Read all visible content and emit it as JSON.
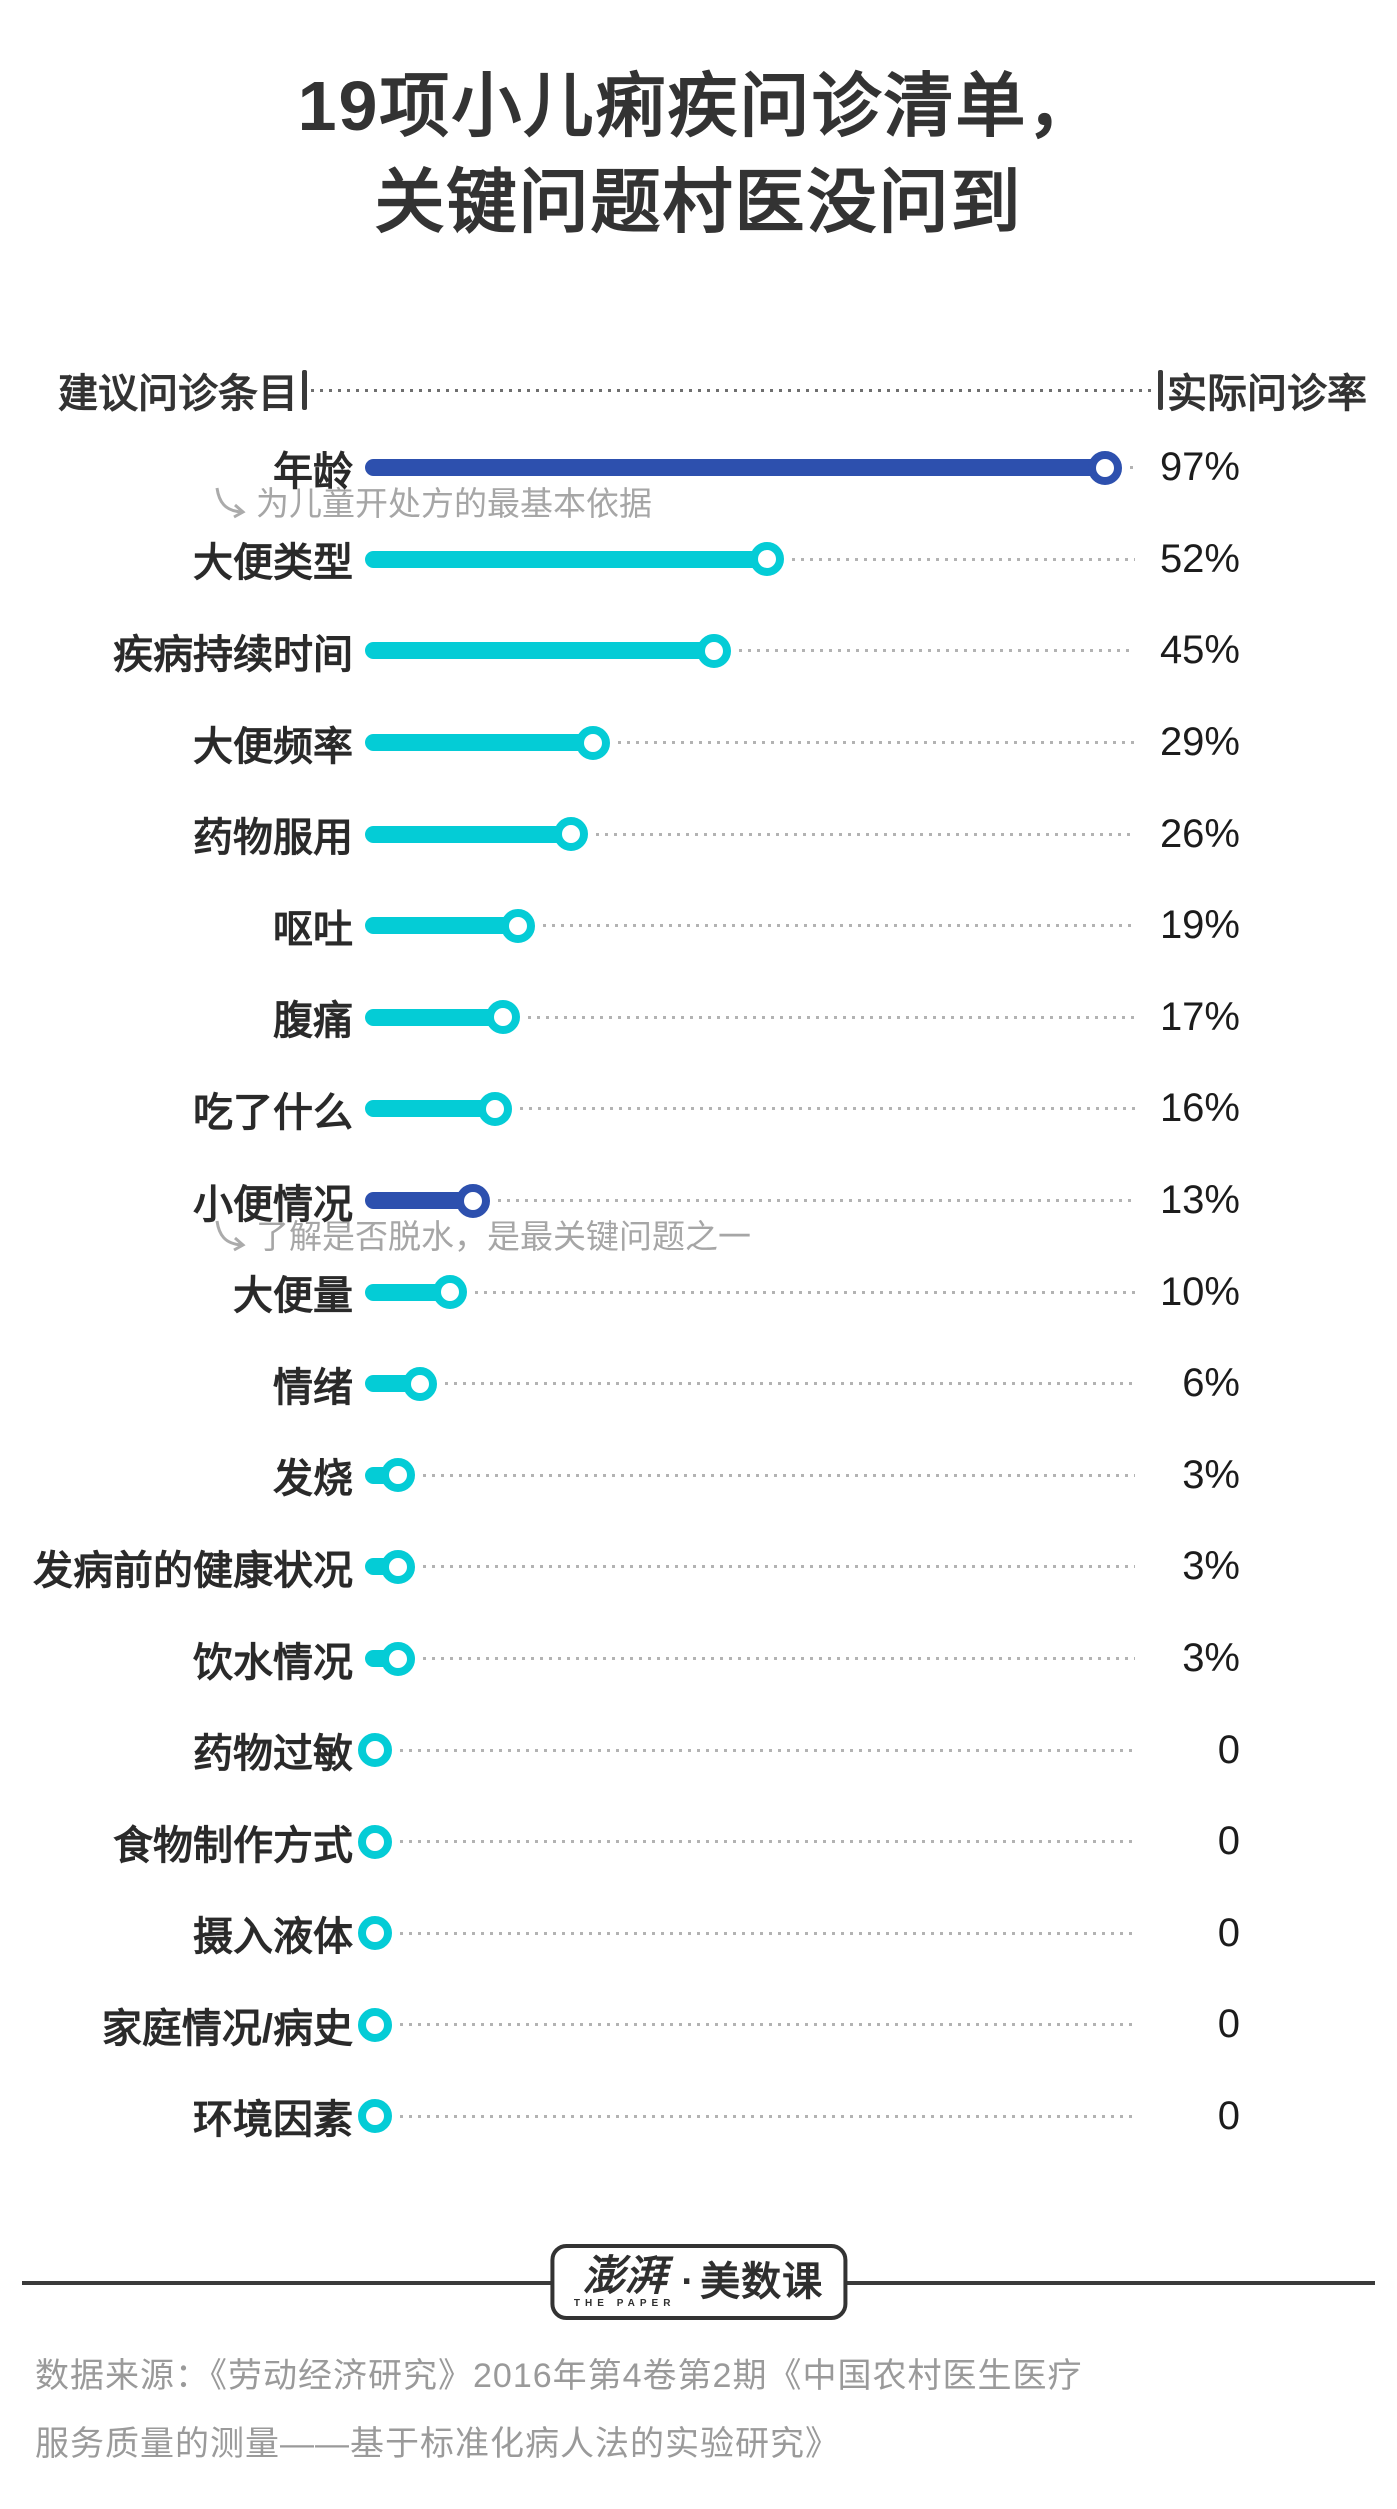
{
  "title": {
    "line1": "19项小儿痢疾问诊清单，",
    "line2": "关键问题村医没问到"
  },
  "header": {
    "left_label": "建议问诊条目",
    "right_label": "实际问诊率"
  },
  "chart_data": {
    "type": "bar",
    "orientation": "horizontal",
    "title": "19项小儿痢疾问诊清单，关键问题村医没问到",
    "xlabel": "实际问诊率",
    "ylabel": "建议问诊条目",
    "unit": "%",
    "xlim": [
      0,
      100
    ],
    "grid": false,
    "legend": false,
    "categories": [
      "年龄",
      "大便类型",
      "疾病持续时间",
      "大便频率",
      "药物服用",
      "呕吐",
      "腹痛",
      "吃了什么",
      "小便情况",
      "大便量",
      "情绪",
      "发烧",
      "发病前的健康状况",
      "饮水情况",
      "药物过敏",
      "食物制作方式",
      "摄入液体",
      "家庭情况/病史",
      "环境因素"
    ],
    "values": [
      97,
      52,
      45,
      29,
      26,
      19,
      17,
      16,
      13,
      10,
      6,
      3,
      3,
      3,
      0,
      0,
      0,
      0,
      0
    ],
    "value_labels": [
      "97%",
      "52%",
      "45%",
      "29%",
      "26%",
      "19%",
      "17%",
      "16%",
      "13%",
      "10%",
      "6%",
      "3%",
      "3%",
      "3%",
      "0",
      "0",
      "0",
      "0",
      "0"
    ],
    "highlight_indices": [
      0,
      8
    ],
    "annotations": [
      {
        "row_index": 0,
        "text": "为儿童开处方的最基本依据"
      },
      {
        "row_index": 8,
        "text": "了解是否脱水，是最关键问题之一"
      }
    ],
    "colors": {
      "highlight": "#2d50ae",
      "normal": "#04ccd6",
      "leader_dots": "#b3b3b3",
      "annotation_text": "#a6a6a6",
      "value_text": "#1c1c1c",
      "category_text": "#2a2a2a"
    }
  },
  "footer": {
    "logo": {
      "brand": "澎湃",
      "brand_sub": "THE PAPER",
      "dot": "·",
      "suffix": "美数课"
    },
    "source_line1": "数据来源：《劳动经济研究》2016年第4卷第2期《中国农村医生医疗",
    "source_line2": "服务质量的测量——基于标准化病人法的实验研究》"
  }
}
